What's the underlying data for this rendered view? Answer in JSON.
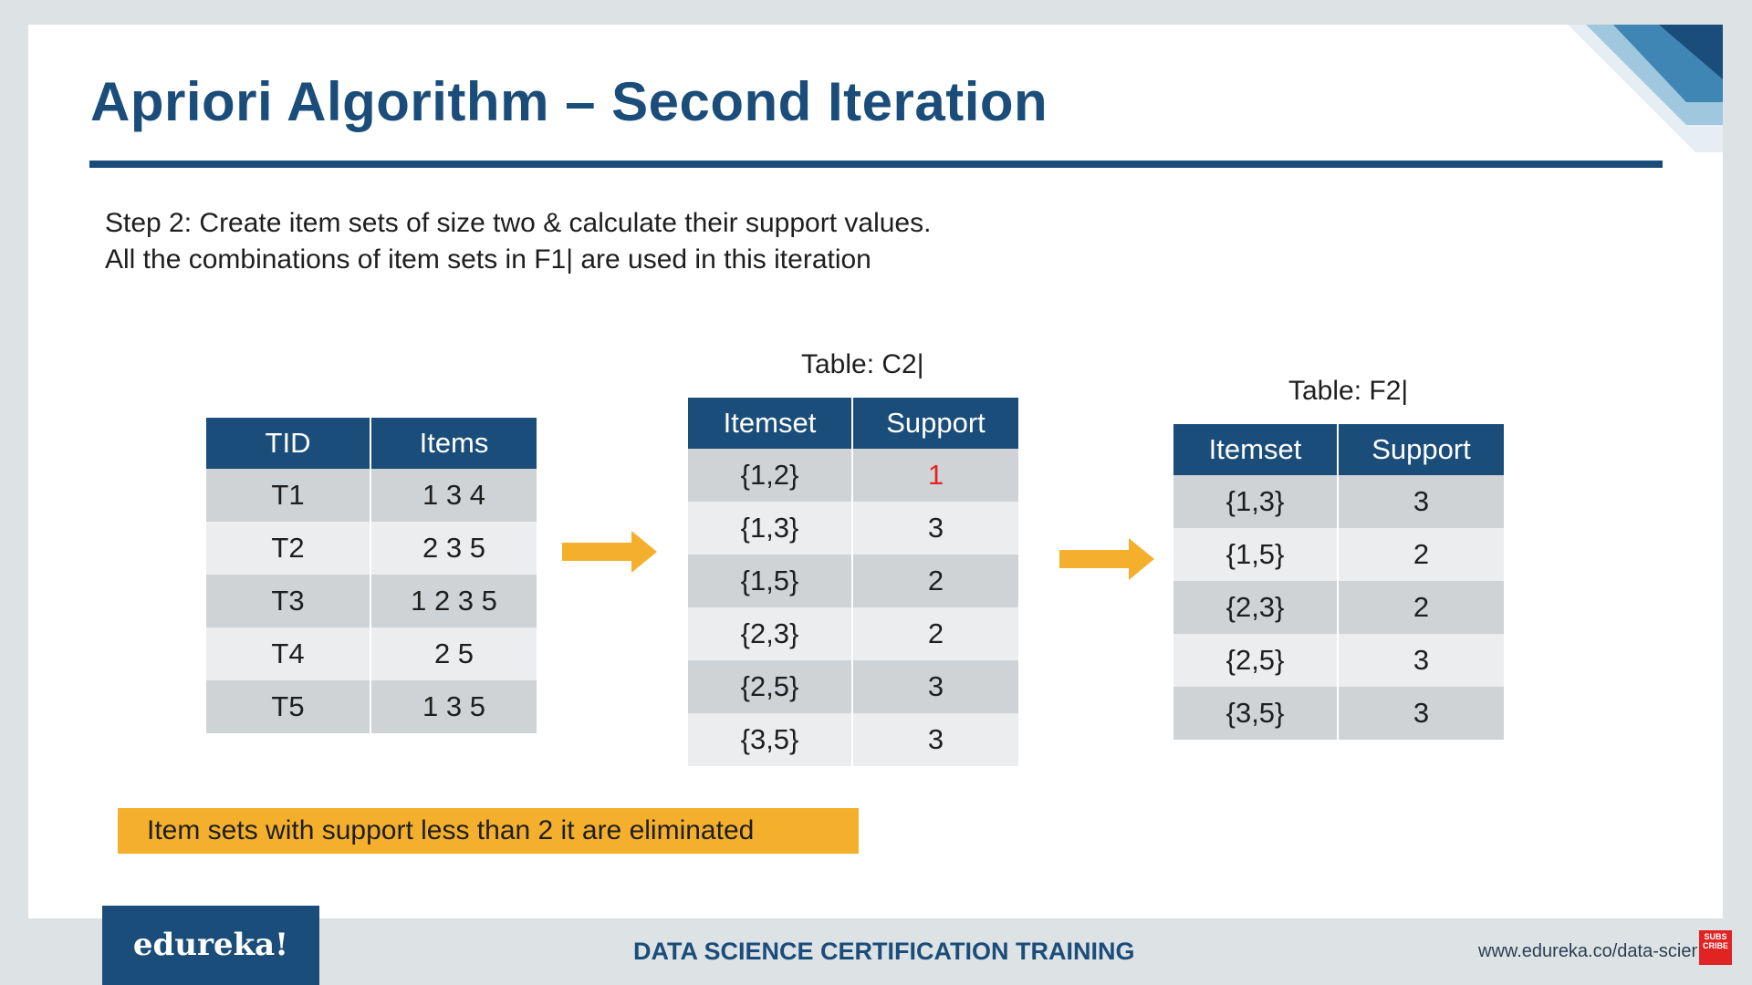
{
  "slide": {
    "title": "Apriori Algorithm – Second Iteration",
    "step_line1": "Step 2: Create item sets of size two & calculate their support values.",
    "step_line2": "All the combinations of item sets in F1| are used in this iteration"
  },
  "table_tid": {
    "headers": [
      "TID",
      "Items"
    ],
    "rows": [
      [
        "T1",
        "1 3 4"
      ],
      [
        "T2",
        "2 3 5"
      ],
      [
        "T3",
        "1 2 3 5"
      ],
      [
        "T4",
        "2 5"
      ],
      [
        "T5",
        "1 3 5"
      ]
    ]
  },
  "table_c2": {
    "caption": "Table: C2|",
    "headers": [
      "Itemset",
      "Support"
    ],
    "rows": [
      [
        "{1,2}",
        "1"
      ],
      [
        "{1,3}",
        "3"
      ],
      [
        "{1,5}",
        "2"
      ],
      [
        "{2,3}",
        "2"
      ],
      [
        "{2,5}",
        "3"
      ],
      [
        "{3,5}",
        "3"
      ]
    ]
  },
  "table_f2": {
    "caption": "Table: F2|",
    "headers": [
      "Itemset",
      "Support"
    ],
    "rows": [
      [
        "{1,3}",
        "3"
      ],
      [
        "{1,5}",
        "2"
      ],
      [
        "{2,3}",
        "2"
      ],
      [
        "{2,5}",
        "3"
      ],
      [
        "{3,5}",
        "3"
      ]
    ]
  },
  "note": "Item sets with support less than 2 it are eliminated",
  "footer": {
    "brand": "edureka!",
    "course": "DATA SCIENCE CERTIFICATION TRAINING",
    "url": "www.edureka.co/data-science",
    "subscribe_badge": "SUBS CRIBE"
  },
  "colors": {
    "brand_blue": "#1b4d7a",
    "arrow_orange": "#f4b02c",
    "highlight_red": "#e52421"
  },
  "icons": [
    "right-arrow-icon",
    "subscribe-icon"
  ]
}
